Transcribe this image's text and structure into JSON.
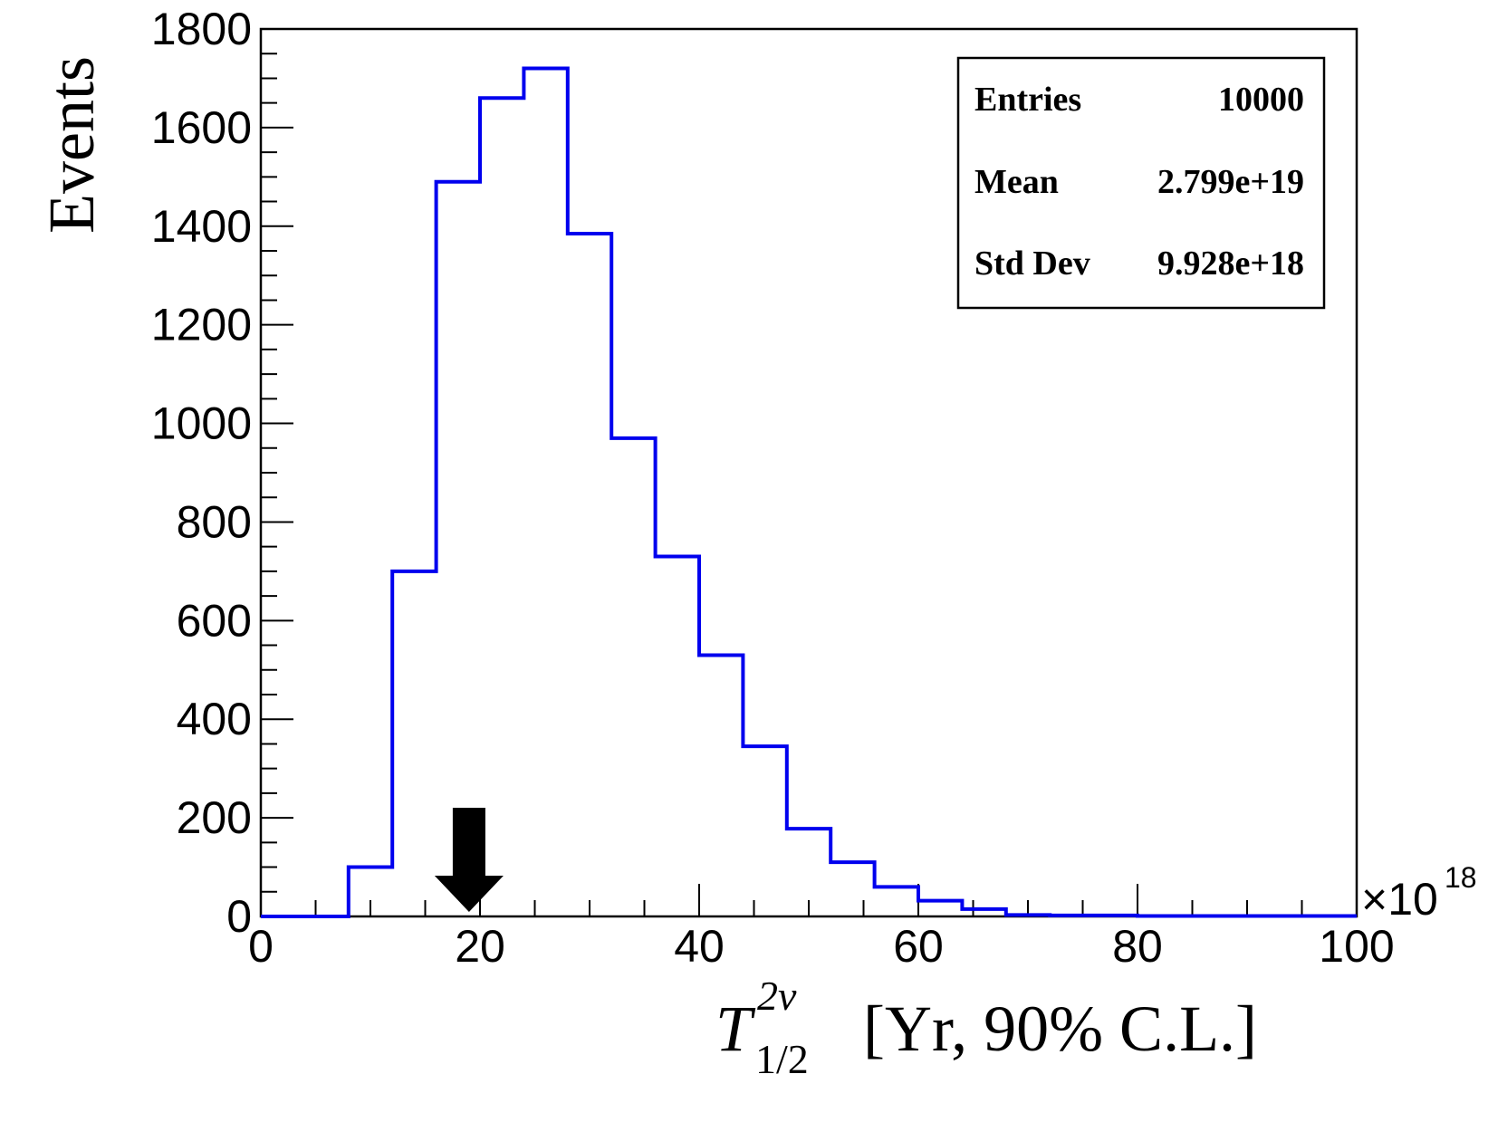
{
  "chart_data": {
    "type": "bar",
    "subtype": "histogram",
    "x_scale_label": "×10",
    "x_scale_exponent": "18",
    "ylabel": "Events",
    "xlabel": {
      "symbol": "T",
      "superscript": "2ν",
      "subscript": "1/2",
      "rest": " [Yr, 90% C.L.]"
    },
    "xlim": [
      0,
      100
    ],
    "ylim": [
      0,
      1800
    ],
    "x_ticks": [
      0,
      20,
      40,
      60,
      80,
      100
    ],
    "y_ticks": [
      0,
      200,
      400,
      600,
      800,
      1000,
      1200,
      1400,
      1600,
      1800
    ],
    "bin_width": 4,
    "bin_edges_start": 0,
    "values": [
      0,
      0,
      100,
      700,
      1490,
      1660,
      1720,
      1385,
      970,
      730,
      530,
      345,
      178,
      110,
      60,
      32,
      15,
      3,
      2,
      2,
      1,
      1,
      1,
      1,
      1
    ],
    "series_color": "#0000ee",
    "arrow_x": 19,
    "stats_box": {
      "rows": [
        {
          "label": "Entries",
          "value": "10000"
        },
        {
          "label": "Mean",
          "value": "2.799e+19"
        },
        {
          "label": "Std Dev",
          "value": "9.928e+18"
        }
      ]
    },
    "grid": false
  }
}
